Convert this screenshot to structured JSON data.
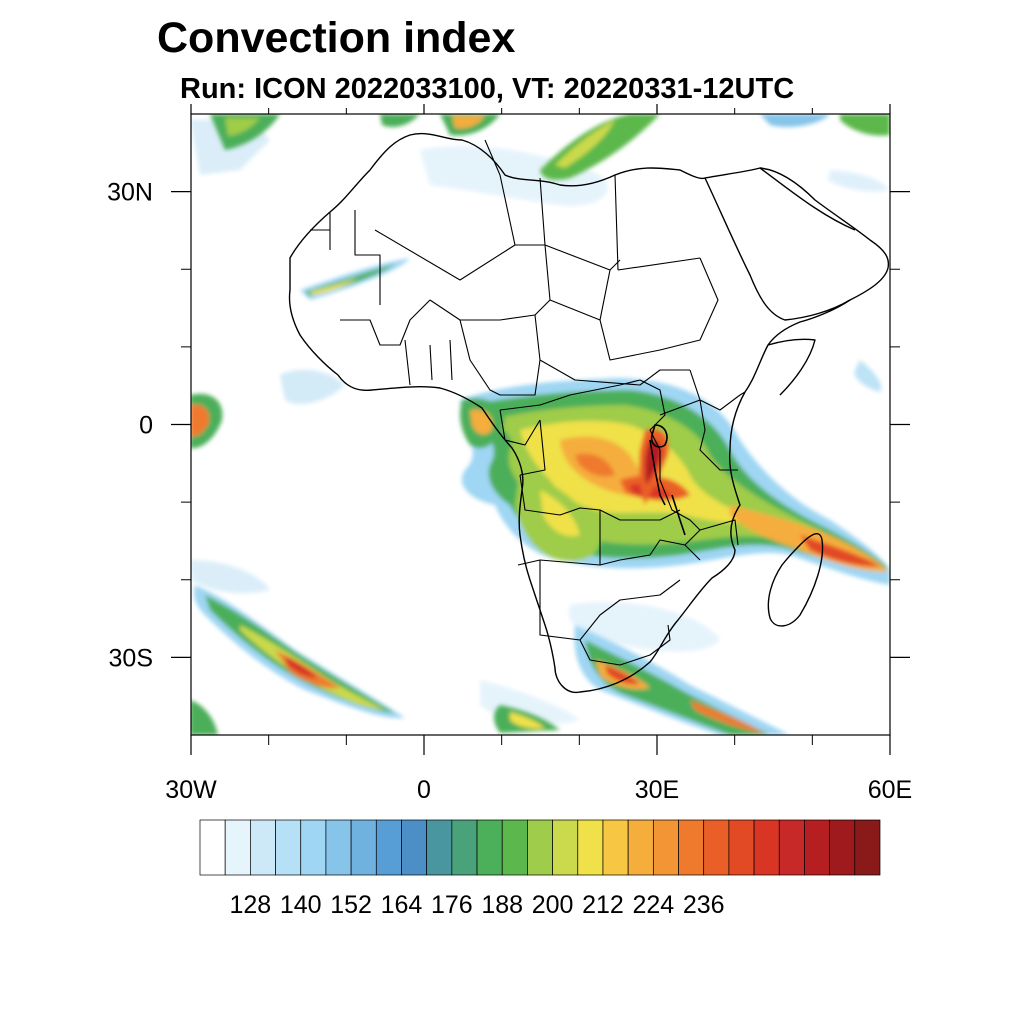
{
  "title": "Convection index",
  "subtitle": "Run: ICON 2022033100,  VT: 20220331-12UTC",
  "map": {
    "projection": "lat-lon",
    "lon_range": [
      -30,
      60
    ],
    "lat_range": [
      -40,
      40
    ],
    "x_ticks": [
      {
        "lon": -30,
        "label": "30W"
      },
      {
        "lon": 0,
        "label": "0"
      },
      {
        "lon": 30,
        "label": "30E"
      },
      {
        "lon": 60,
        "label": "60E"
      }
    ],
    "y_ticks": [
      {
        "lat": 30,
        "label": "30N"
      },
      {
        "lat": 0,
        "label": "0"
      },
      {
        "lat": -30,
        "label": "30S"
      }
    ],
    "minor_lon_ticks": [
      -20,
      -10,
      10,
      20,
      40,
      50
    ],
    "minor_lat_ticks": [
      20,
      10,
      -10,
      -20
    ]
  },
  "colorbar": {
    "levels": [
      128,
      140,
      152,
      164,
      176,
      188,
      200,
      212,
      224,
      236
    ],
    "colors": [
      "#ffffff",
      "#e6f4fc",
      "#cde9f7",
      "#b6e0f5",
      "#9fd6f3",
      "#86c4ea",
      "#6fb2e0",
      "#589ed6",
      "#4c8fc6",
      "#4a96a0",
      "#4aa27a",
      "#4caf5a",
      "#5cb84c",
      "#9fcc4a",
      "#cbd94c",
      "#f0e14a",
      "#f7c744",
      "#f5ad3c",
      "#f39534",
      "#ef7a2e",
      "#ea5f28",
      "#e24a25",
      "#d83525",
      "#c72828",
      "#b51f22",
      "#9f1a1d",
      "#8a1a1a"
    ]
  }
}
